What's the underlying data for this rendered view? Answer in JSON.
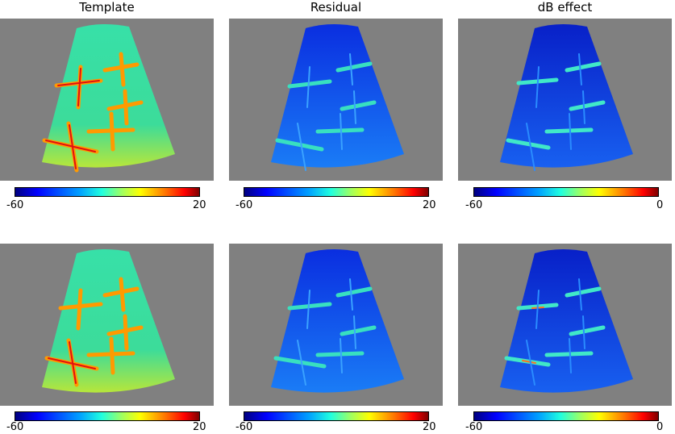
{
  "titles": [
    "Template",
    "Residual",
    "dB effect"
  ],
  "panels": [
    {
      "row": 0,
      "col": 0,
      "colormap": "jet",
      "scale": [
        -60,
        20
      ]
    },
    {
      "row": 0,
      "col": 1,
      "colormap": "jet",
      "scale": [
        -60,
        20
      ]
    },
    {
      "row": 0,
      "col": 2,
      "colormap": "jet",
      "scale": [
        -60,
        0
      ]
    },
    {
      "row": 1,
      "col": 0,
      "colormap": "jet",
      "scale": [
        -60,
        20
      ]
    },
    {
      "row": 1,
      "col": 1,
      "colormap": "jet",
      "scale": [
        -60,
        20
      ]
    },
    {
      "row": 1,
      "col": 2,
      "colormap": "jet",
      "scale": [
        -60,
        0
      ]
    }
  ],
  "colorbars": {
    "template": {
      "min": "-60",
      "max": "20"
    },
    "residual": {
      "min": "-60",
      "max": "20"
    },
    "db_effect": {
      "min": "-60",
      "max": "0"
    }
  },
  "colors": {
    "background": "#808080",
    "template_fill": "#2fe0a6",
    "residual_fill": "#0a3cf0",
    "db_fill": "#0828d8"
  }
}
